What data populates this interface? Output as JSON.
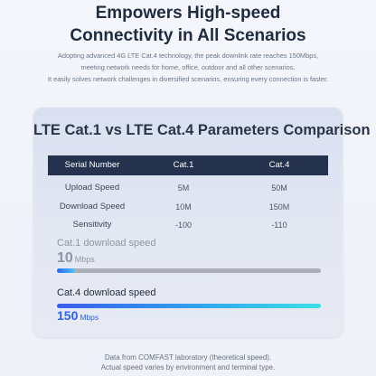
{
  "hero": {
    "title_line1": "Empowers High-speed",
    "title_line2": "Connectivity in All Scenarios",
    "desc_line1": "Adopting advanced 4G LTE Cat.4 technology, the peak downlink rate reaches 150Mbps,",
    "desc_line2": "meeting network needs for home, office, outdoor and all other scenarios.",
    "desc_line3": "It easily solves network challenges in diversified scenarios, ensuring every connection is faster."
  },
  "comparison": {
    "title": "LTE Cat.1 vs LTE Cat.4 Parameters Comparison",
    "headers": [
      "Serial Number",
      "Cat.1",
      "Cat.4"
    ],
    "rows": [
      [
        "Upload Speed",
        "5M",
        "50M"
      ],
      [
        "Download Speed",
        "10M",
        "150M"
      ],
      [
        "Sensitivity",
        "-100",
        "-110"
      ]
    ]
  },
  "speeds": {
    "cat1": {
      "label": "Cat.1 download speed",
      "value": "10",
      "unit": "Mbps",
      "fraction": 0.067
    },
    "cat4": {
      "label": "Cat.4 download speed",
      "value": "150",
      "unit": "Mbps",
      "fraction": 1.0
    }
  },
  "footnote": {
    "line1": "Data from COMFAST laboratory (theoretical speed).",
    "line2": "Actual speed varies by environment and terminal type."
  },
  "colors": {
    "header_bg": "#24324e",
    "accent_blue": "#2a62f0",
    "muted_gray": "#8e96a3"
  }
}
